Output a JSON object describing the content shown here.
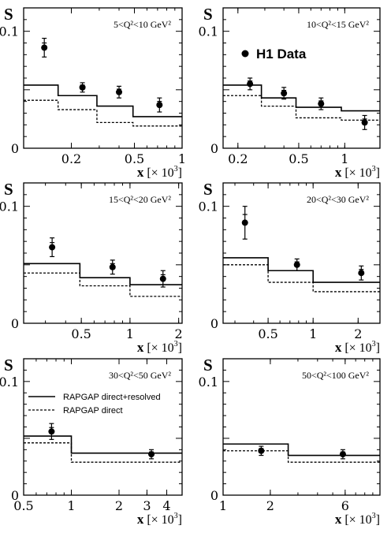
{
  "figure": {
    "y_axis_symbol": "S",
    "x_axis_label_main": "x",
    "x_axis_label_unit": " [× 10",
    "x_axis_label_exp": "3",
    "x_axis_label_close": "]",
    "h1_legend_label": "H1 Data",
    "model_legend": [
      {
        "label": "RAPGAP direct+resolved",
        "style": "solid"
      },
      {
        "label": "RAPGAP direct",
        "style": "dashed"
      }
    ]
  },
  "chart_data": [
    {
      "type": "line",
      "panel": "top-left",
      "range_label": "5<Q²<10 GeV²",
      "x_scale": "log",
      "xlim": [
        0.1,
        1.0
      ],
      "ylim": [
        0,
        0.12
      ],
      "x_ticks": [
        0.2,
        0.5,
        1
      ],
      "x_tick_labels": [
        "0.2",
        "0.5",
        "1"
      ],
      "y_ticks": [
        0,
        0.1
      ],
      "y_tick_labels": [
        "0",
        "0.1"
      ],
      "data": {
        "x": [
          0.135,
          0.235,
          0.4,
          0.72
        ],
        "y": [
          0.086,
          0.052,
          0.048,
          0.037
        ],
        "err": [
          0.008,
          0.004,
          0.005,
          0.006
        ]
      },
      "model_solid": {
        "edges": [
          0.1,
          0.165,
          0.29,
          0.49,
          1.0
        ],
        "values": [
          0.054,
          0.045,
          0.036,
          0.027
        ]
      },
      "model_dashed": {
        "edges": [
          0.1,
          0.165,
          0.29,
          0.49,
          1.0
        ],
        "values": [
          0.041,
          0.033,
          0.022,
          0.019
        ]
      }
    },
    {
      "type": "line",
      "panel": "top-right",
      "range_label": "10<Q²<15 GeV²",
      "x_scale": "log",
      "xlim": [
        0.16,
        1.7
      ],
      "ylim": [
        0,
        0.12
      ],
      "x_ticks": [
        0.2,
        0.5,
        1
      ],
      "x_tick_labels": [
        "0.2",
        "0.5",
        "1"
      ],
      "y_ticks": [
        0,
        0.1
      ],
      "y_tick_labels": [
        "0",
        "0.1"
      ],
      "data": {
        "x": [
          0.24,
          0.4,
          0.7,
          1.35
        ],
        "y": [
          0.055,
          0.047,
          0.038,
          0.022
        ],
        "err": [
          0.005,
          0.005,
          0.005,
          0.006
        ]
      },
      "model_solid": {
        "edges": [
          0.16,
          0.285,
          0.48,
          0.95,
          1.7
        ],
        "values": [
          0.054,
          0.043,
          0.035,
          0.032
        ]
      },
      "model_dashed": {
        "edges": [
          0.16,
          0.285,
          0.48,
          0.95,
          1.7
        ],
        "values": [
          0.045,
          0.036,
          0.026,
          0.024
        ]
      }
    },
    {
      "type": "line",
      "panel": "middle-left",
      "range_label": "15<Q²<20 GeV²",
      "x_scale": "log",
      "xlim": [
        0.22,
        2.1
      ],
      "ylim": [
        0,
        0.12
      ],
      "x_ticks": [
        0.5,
        1,
        2
      ],
      "x_tick_labels": [
        "0.5",
        "1",
        "2"
      ],
      "y_ticks": [
        0,
        0.1
      ],
      "y_tick_labels": [
        "0",
        "0.1"
      ],
      "data": {
        "x": [
          0.33,
          0.78,
          1.6
        ],
        "y": [
          0.065,
          0.048,
          0.038
        ],
        "err": [
          0.008,
          0.006,
          0.007
        ]
      },
      "model_solid": {
        "edges": [
          0.22,
          0.49,
          1.0,
          2.1
        ],
        "values": [
          0.051,
          0.039,
          0.033
        ]
      },
      "model_dashed": {
        "edges": [
          0.22,
          0.49,
          1.0,
          2.1
        ],
        "values": [
          0.043,
          0.032,
          0.023
        ]
      }
    },
    {
      "type": "line",
      "panel": "middle-right",
      "range_label": "20<Q²<30 GeV²",
      "x_scale": "log",
      "xlim": [
        0.25,
        2.8
      ],
      "ylim": [
        0,
        0.12
      ],
      "x_ticks": [
        0.5,
        1,
        2
      ],
      "x_tick_labels": [
        "0.5",
        "1",
        "2"
      ],
      "y_ticks": [
        0,
        0.1
      ],
      "y_tick_labels": [
        "0",
        "0.1"
      ],
      "data": {
        "x": [
          0.35,
          0.78,
          2.1
        ],
        "y": [
          0.086,
          0.05,
          0.043
        ],
        "err": [
          0.014,
          0.005,
          0.006
        ]
      },
      "model_solid": {
        "edges": [
          0.25,
          0.5,
          1.0,
          2.8
        ],
        "values": [
          0.056,
          0.045,
          0.035
        ]
      },
      "model_dashed": {
        "edges": [
          0.25,
          0.5,
          1.0,
          2.8
        ],
        "values": [
          0.05,
          0.035,
          0.027
        ]
      }
    },
    {
      "type": "line",
      "panel": "bottom-left",
      "range_label": "30<Q²<50 GeV²",
      "x_scale": "log",
      "xlim": [
        0.5,
        5.0
      ],
      "ylim": [
        0,
        0.12
      ],
      "x_ticks": [
        0.5,
        1,
        2,
        3,
        4
      ],
      "x_tick_labels": [
        "0.5",
        "1",
        "2",
        "3",
        "4"
      ],
      "y_ticks": [
        0,
        0.1
      ],
      "y_tick_labels": [
        "0",
        "0.1"
      ],
      "data": {
        "x": [
          0.75,
          3.2
        ],
        "y": [
          0.056,
          0.036
        ],
        "err": [
          0.007,
          0.004
        ]
      },
      "model_solid": {
        "edges": [
          0.5,
          1.0,
          5.0
        ],
        "values": [
          0.052,
          0.037
        ]
      },
      "model_dashed": {
        "edges": [
          0.5,
          1.0,
          5.0
        ],
        "values": [
          0.046,
          0.029
        ]
      }
    },
    {
      "type": "line",
      "panel": "bottom-right",
      "range_label": "50<Q²<100 GeV²",
      "x_scale": "log",
      "xlim": [
        1.0,
        10.0
      ],
      "ylim": [
        0,
        0.12
      ],
      "x_ticks": [
        1,
        2,
        6
      ],
      "x_tick_labels": [
        "1",
        "2",
        "6"
      ],
      "y_ticks": [
        0,
        0.1
      ],
      "y_tick_labels": [
        "0",
        "0.1"
      ],
      "data": {
        "x": [
          1.75,
          5.8
        ],
        "y": [
          0.039,
          0.036
        ],
        "err": [
          0.004,
          0.004
        ]
      },
      "model_solid": {
        "edges": [
          1.0,
          2.6,
          10.0
        ],
        "values": [
          0.045,
          0.035
        ]
      },
      "model_dashed": {
        "edges": [
          1.0,
          2.6,
          10.0
        ],
        "values": [
          0.039,
          0.029
        ]
      }
    }
  ]
}
